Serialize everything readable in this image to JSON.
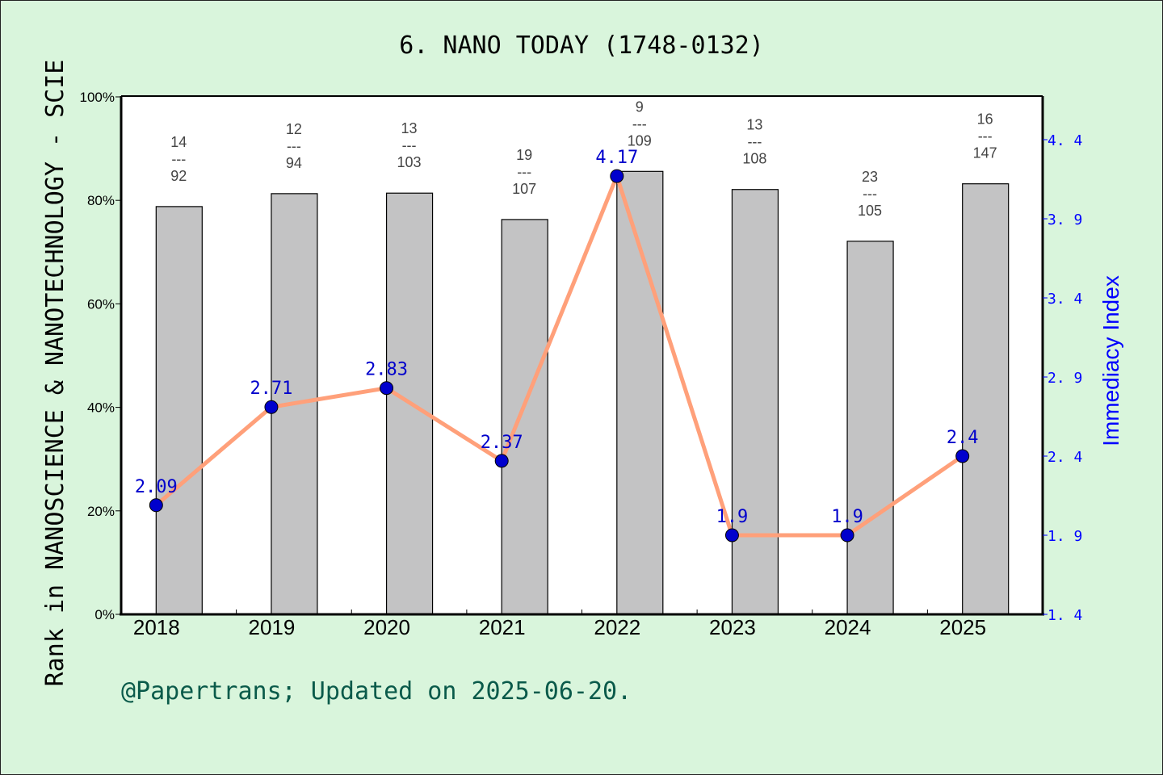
{
  "chart_data": {
    "type": "bar",
    "title": "6. NANO TODAY (1748-0132)",
    "xlabel": "",
    "ylabel": "Rank in NANOSCIENCE & NANOTECHNOLOGY - SCIE",
    "ylabel_right": "Immediacy Index",
    "categories": [
      "2018",
      "2019",
      "2020",
      "2021",
      "2022",
      "2023",
      "2024",
      "2025"
    ],
    "series": [
      {
        "name": "Rank percentile",
        "type": "bar",
        "axis": "left",
        "values": [
          78.8,
          81.3,
          81.4,
          76.3,
          85.6,
          82.1,
          72.1,
          83.2
        ],
        "color": "#b8b9ba"
      },
      {
        "name": "Immediacy Index",
        "type": "line",
        "axis": "right",
        "values": [
          2.09,
          2.71,
          2.83,
          2.37,
          4.17,
          1.9,
          1.9,
          2.4
        ],
        "labels": [
          "2.09",
          "2.71",
          "2.83",
          "2.37",
          "4.17",
          "1.9",
          "1.9",
          "2.4"
        ],
        "color": "#ffa07a",
        "marker_color": "#0000cd"
      }
    ],
    "rank_labels": [
      {
        "rank": "14",
        "total": "92"
      },
      {
        "rank": "12",
        "total": "94"
      },
      {
        "rank": "13",
        "total": "103"
      },
      {
        "rank": "19",
        "total": "107"
      },
      {
        "rank": "9",
        "total": "109"
      },
      {
        "rank": "13",
        "total": "108"
      },
      {
        "rank": "23",
        "total": "105"
      },
      {
        "rank": "16",
        "total": "147"
      }
    ],
    "ylim": [
      0,
      100
    ],
    "ylim_right": [
      1.4,
      4.6
    ],
    "yticks": [
      "0%",
      "20%",
      "40%",
      "60%",
      "80%",
      "100%"
    ],
    "yticks_right": [
      "1.4",
      "1.9",
      "2.4",
      "2.9",
      "3.4",
      "3.9",
      "4.4"
    ],
    "grid": false,
    "legend": "none"
  },
  "footer": "@Papertrans; Updated on 2025-06-20.",
  "colors": {
    "background": "#d9f5dc",
    "plot_bg": "#ffffff",
    "bar": "#b8b9ba",
    "line": "#ffa07a",
    "marker": "#0000cd",
    "right_axis": "#0000ff",
    "footer": "#0a5a4a"
  }
}
